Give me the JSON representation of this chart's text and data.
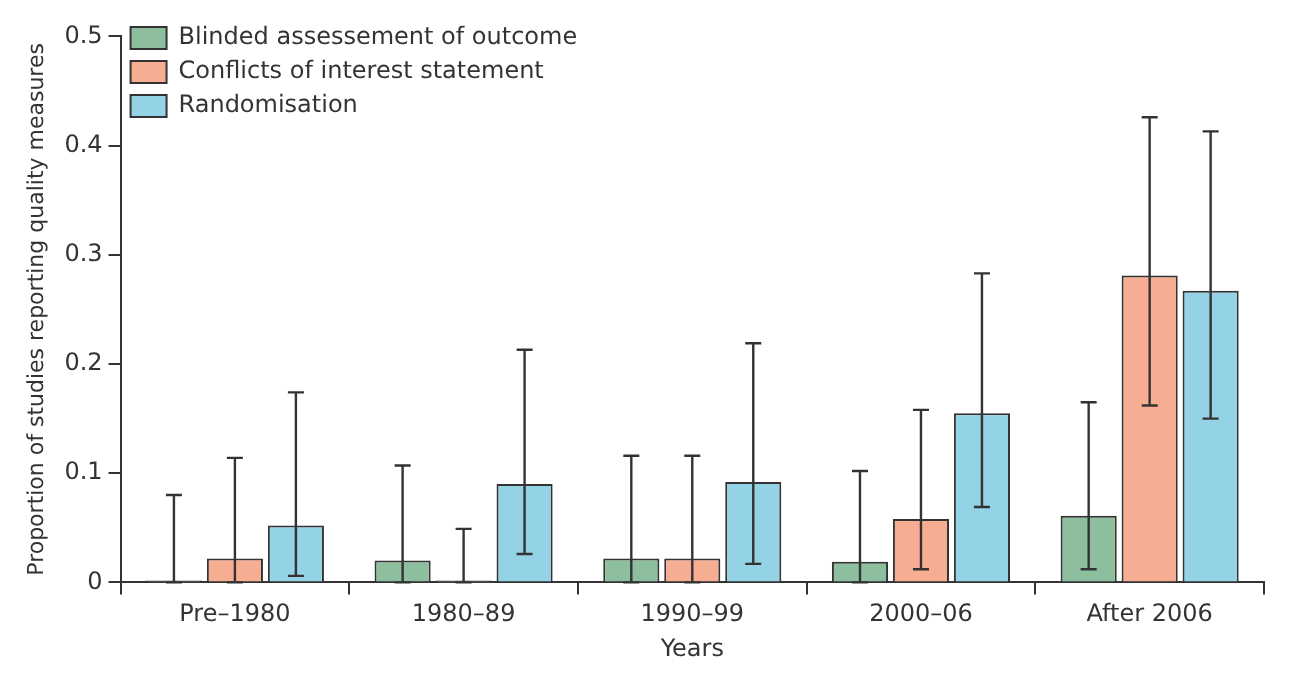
{
  "chart_data": {
    "type": "bar",
    "xlabel": "Years",
    "ylabel": "Proportion of studies reporting quality measures",
    "categories": [
      "Pre–1980",
      "1980–89",
      "1990–99",
      "2000–06",
      "After 2006"
    ],
    "series": [
      {
        "name": "Blinded assessement of outcome",
        "color": "#8dbf9f",
        "values": [
          0,
          0.02,
          0.022,
          0.019,
          0.061
        ],
        "errors": [
          [
            0,
            0.08
          ],
          [
            0,
            0.107
          ],
          [
            0,
            0.116
          ],
          [
            0,
            0.102
          ],
          [
            0.012,
            0.165
          ]
        ]
      },
      {
        "name": "Conflicts of interest statement",
        "color": "#f7ad92",
        "values": [
          0.022,
          0,
          0.022,
          0.058,
          0.281
        ],
        "errors": [
          [
            0,
            0.114
          ],
          [
            0,
            0.049
          ],
          [
            0,
            0.116
          ],
          [
            0.012,
            0.158
          ],
          [
            0.162,
            0.426
          ]
        ]
      },
      {
        "name": "Randomisation",
        "color": "#94d2e6",
        "values": [
          0.052,
          0.09,
          0.092,
          0.155,
          0.267
        ],
        "errors": [
          [
            0.006,
            0.174
          ],
          [
            0.026,
            0.213
          ],
          [
            0.017,
            0.219
          ],
          [
            0.069,
            0.283
          ],
          [
            0.15,
            0.413
          ]
        ]
      }
    ],
    "ylim": [
      0,
      0.5
    ],
    "yticks": [
      0,
      0.1,
      0.2,
      0.3,
      0.4,
      0.5
    ],
    "grid": false,
    "legend": "top left"
  }
}
